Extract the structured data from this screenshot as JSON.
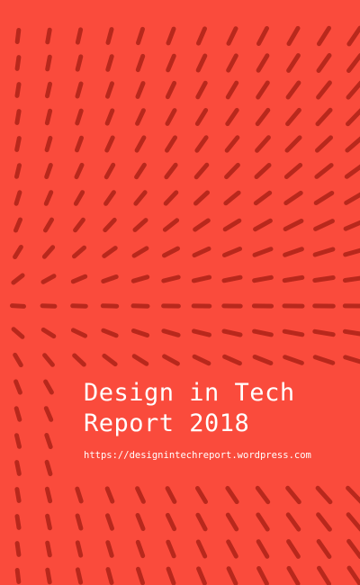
{
  "cover": {
    "title_line_1": "Design in Tech",
    "title_line_2": "Report 2018",
    "url": "https://designintechreport.wordpress.com"
  },
  "colors": {
    "background": "#fa4b3c",
    "dash": "#b8281c",
    "text": "#ffffff"
  },
  "pattern": {
    "name": "flow-field-dash-pattern"
  }
}
